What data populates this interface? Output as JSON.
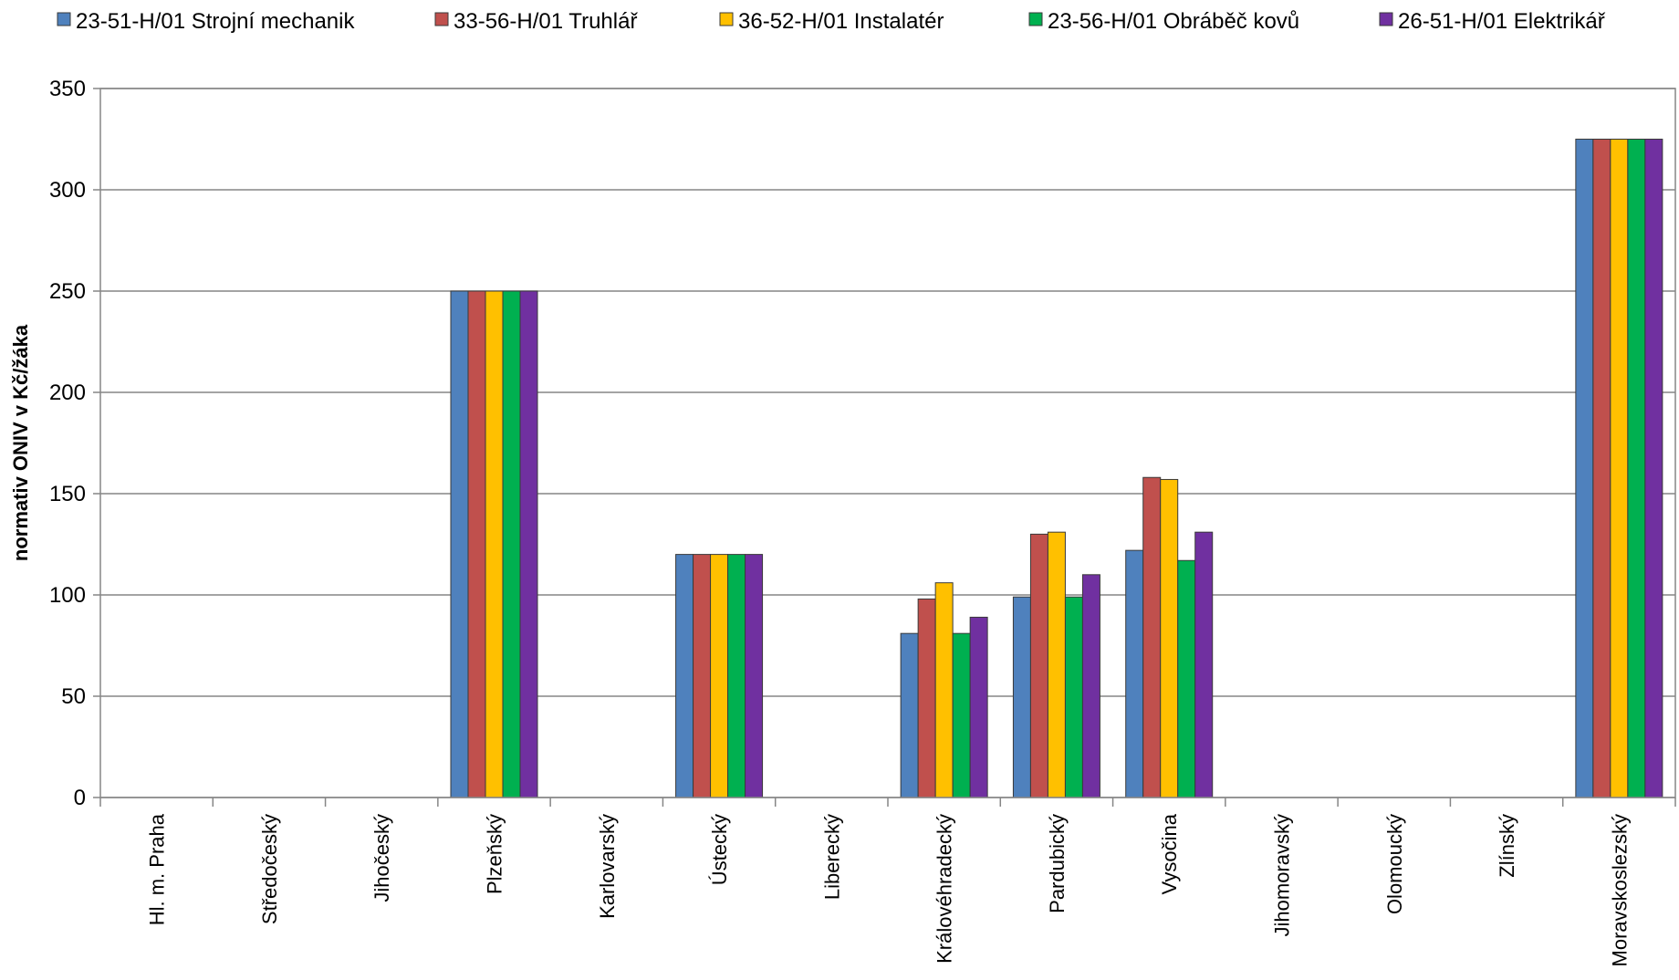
{
  "chart_data": {
    "type": "bar",
    "title": "",
    "xlabel": "",
    "ylabel": "normativ ONIV v Kč/žáka",
    "ylim": [
      0,
      350
    ],
    "yticks": [
      0,
      50,
      100,
      150,
      200,
      250,
      300,
      350
    ],
    "grid": true,
    "legend_position": "top",
    "categories": [
      "Hl. m. Praha",
      "Středočeský",
      "Jihočeský",
      "Plzeňský",
      "Karlovarský",
      "Ústecký",
      "Liberecký",
      "Královéhradecký",
      "Pardubický",
      "Vysočina",
      "Jihomoravský",
      "Olomoucký",
      "Zlínský",
      "Moravskoslezský"
    ],
    "series": [
      {
        "name": "23-51-H/01 Strojní mechanik",
        "color": "#4F81BD",
        "values": [
          0,
          0,
          0,
          250,
          0,
          120,
          0,
          81,
          99,
          122,
          0,
          0,
          0,
          325
        ]
      },
      {
        "name": "33-56-H/01 Truhlář",
        "color": "#C0504D",
        "values": [
          0,
          0,
          0,
          250,
          0,
          120,
          0,
          98,
          130,
          158,
          0,
          0,
          0,
          325
        ]
      },
      {
        "name": "36-52-H/01 Instalatér",
        "color": "#FFC000",
        "values": [
          0,
          0,
          0,
          250,
          0,
          120,
          0,
          106,
          131,
          157,
          0,
          0,
          0,
          325
        ]
      },
      {
        "name": "23-56-H/01 Obráběč kovů",
        "color": "#00B050",
        "values": [
          0,
          0,
          0,
          250,
          0,
          120,
          0,
          81,
          99,
          117,
          0,
          0,
          0,
          325
        ]
      },
      {
        "name": "26-51-H/01 Elektrikář",
        "color": "#7030A0",
        "values": [
          0,
          0,
          0,
          250,
          0,
          120,
          0,
          89,
          110,
          131,
          0,
          0,
          0,
          325
        ]
      }
    ]
  }
}
